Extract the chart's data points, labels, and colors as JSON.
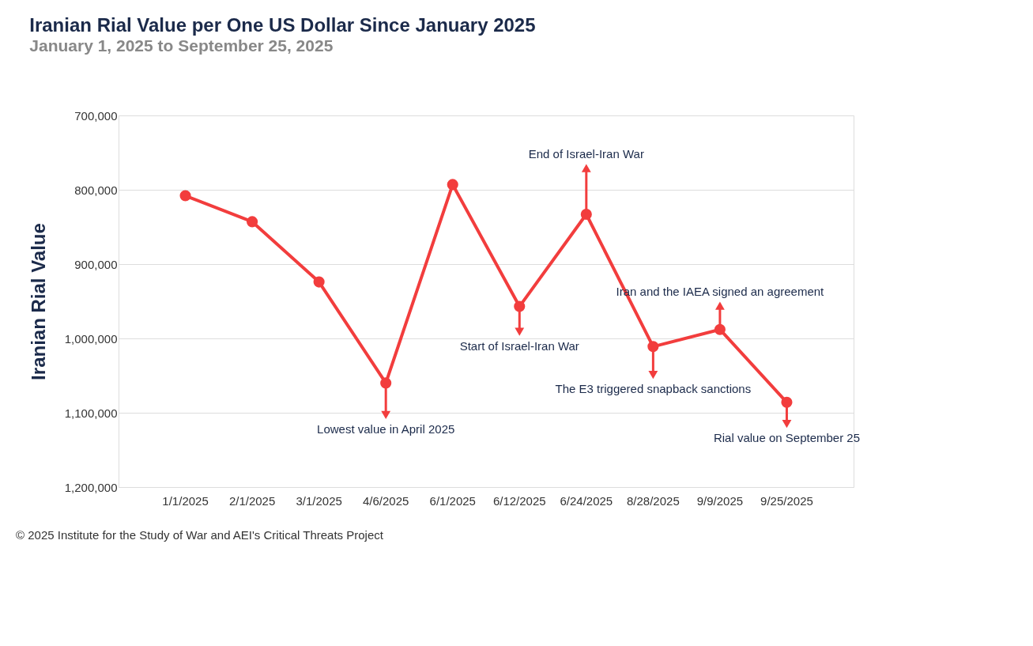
{
  "chart_data": {
    "type": "line",
    "title": "Iranian Rial Value per One US Dollar Since January 2025",
    "subtitle": "January 1, 2025 to September 25, 2025",
    "ylabel": "Iranian Rial Value",
    "categories": [
      "1/1/2025",
      "2/1/2025",
      "3/1/2025",
      "4/6/2025",
      "6/1/2025",
      "6/12/2025",
      "6/24/2025",
      "8/28/2025",
      "9/9/2025",
      "9/25/2025"
    ],
    "series": [
      {
        "color": "#f23d3d",
        "values": [
          808000,
          843000,
          924000,
          1060000,
          793000,
          957000,
          833000,
          1011000,
          988000,
          1086000
        ]
      }
    ],
    "ylim": [
      1200000,
      700000
    ],
    "yticks": [
      {
        "value": 700000,
        "label": "700,000"
      },
      {
        "value": 800000,
        "label": "800,000"
      },
      {
        "value": 900000,
        "label": "900,000"
      },
      {
        "value": 1000000,
        "label": "1,000,000"
      },
      {
        "value": 1100000,
        "label": "1,100,000"
      },
      {
        "value": 1200000,
        "label": "1,200,000"
      }
    ],
    "grid": "y",
    "marker": "circle",
    "line_style": "solid",
    "annotations": [
      {
        "text": "Lowest value in April 2025",
        "x": "4/6/2025",
        "y": 1103000
      },
      {
        "text": "Start of Israel-Iran War",
        "x": "6/12/2025",
        "y": 991000
      },
      {
        "text": "End of Israel-Iran War",
        "x": "6/24/2025",
        "y": 771000
      },
      {
        "text": "The E3 triggered snapback sanctions",
        "x": "8/28/2025",
        "y": 1049000
      },
      {
        "text": "Iran and the IAEA signed an agreement",
        "x": "9/9/2025",
        "y": 956000
      },
      {
        "text": "Rial value on September 25",
        "x": "9/25/2025",
        "y": 1115000
      },
      "© 2025 Institute for the Study of War and AEI's Critical Threats Project"
    ]
  }
}
